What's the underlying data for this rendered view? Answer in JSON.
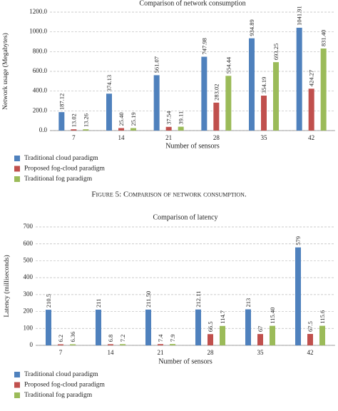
{
  "chart_data": [
    {
      "type": "bar",
      "title": "Comparison of network consumption",
      "ylabel": "Network usage (Megabytes)",
      "xlabel": "Number of sensors",
      "categories": [
        "7",
        "14",
        "21",
        "28",
        "35",
        "42"
      ],
      "ylim": [
        0,
        1200
      ],
      "yticks": [
        {
          "value": 0,
          "label": "0.0"
        },
        {
          "value": 200,
          "label": "200.0"
        },
        {
          "value": 400,
          "label": "400.0"
        },
        {
          "value": 600,
          "label": "600.0"
        },
        {
          "value": 800,
          "label": "800.0"
        },
        {
          "value": 1000,
          "label": "1000.0"
        },
        {
          "value": 1200,
          "label": "1200.0"
        }
      ],
      "grid": true,
      "series": [
        {
          "name": "Traditional cloud paradigm",
          "color": "#4f81bd",
          "values": [
            187.12,
            374.13,
            561.07,
            747.98,
            934.89,
            1041.91
          ],
          "value_labels": [
            "187.12",
            "374.13",
            "561.07",
            "747.98",
            "934.89",
            "1041.91"
          ]
        },
        {
          "name": "Proposed fog-cloud paradigm",
          "color": "#c0504d",
          "values": [
            13.02,
            25.4,
            37.54,
            283.02,
            354.19,
            424.27
          ],
          "value_labels": [
            "13.02",
            "25.40",
            "37.54",
            "283.02",
            "354.19",
            "424.27"
          ]
        },
        {
          "name": "Traditional fog paradigm",
          "color": "#9bbb59",
          "values": [
            13.26,
            25.19,
            39.11,
            554.44,
            693.25,
            831.4
          ],
          "value_labels": [
            "13.26",
            "25.19",
            "39.11",
            "554.44",
            "693.25",
            "831.40"
          ]
        }
      ]
    },
    {
      "type": "bar",
      "title": "Comparison of latency",
      "ylabel": "Latency (milliseconds)",
      "xlabel": "Number of sensors",
      "categories": [
        "7",
        "14",
        "21",
        "28",
        "35",
        "42"
      ],
      "ylim": [
        0,
        700
      ],
      "yticks": [
        0,
        100,
        200,
        300,
        400,
        500,
        600,
        700
      ],
      "grid": true,
      "series": [
        {
          "name": "Traditional cloud paradigm",
          "color": "#4f81bd",
          "values": [
            210.5,
            211,
            211.5,
            212.11,
            213,
            579
          ],
          "value_labels": [
            "210.5",
            "211",
            "211.50",
            "212.11",
            "213",
            "579"
          ]
        },
        {
          "name": "Proposed fog-cloud paradigm",
          "color": "#c0504d",
          "values": [
            6.2,
            6.8,
            7.4,
            66.5,
            67,
            67.5
          ],
          "value_labels": [
            "6.2",
            "6.8",
            "7.4",
            "66.5",
            "67",
            "67.5"
          ]
        },
        {
          "name": "Traditional fog paradigm",
          "color": "#9bbb59",
          "values": [
            6.36,
            7.2,
            7.9,
            114.7,
            115.4,
            115.6
          ],
          "value_labels": [
            "6.36",
            "7.2",
            "7.9",
            "114.7",
            "115.40",
            "115.6"
          ]
        }
      ]
    }
  ],
  "caption": "Figure 5: Comparison of network consumption."
}
